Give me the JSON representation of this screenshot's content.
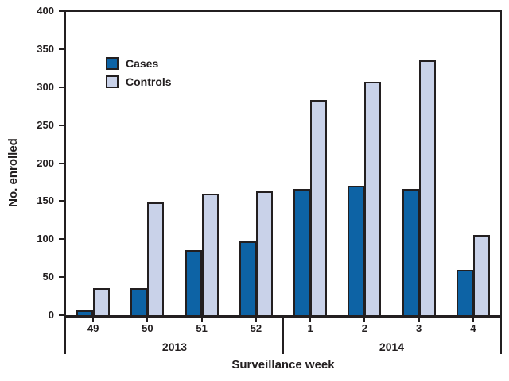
{
  "colors": {
    "cases": "#0d63a5",
    "controls": "#c9d2e9",
    "line": "#231f20",
    "background": "#ffffff"
  },
  "chart_data": {
    "type": "bar",
    "title": "",
    "xlabel": "Surveillance week",
    "ylabel": "No. enrolled",
    "categories": [
      "49",
      "50",
      "51",
      "52",
      "1",
      "2",
      "3",
      "4"
    ],
    "year_groups": [
      {
        "label": "2013",
        "weeks": [
          "49",
          "50",
          "51",
          "52"
        ]
      },
      {
        "label": "2014",
        "weeks": [
          "1",
          "2",
          "3",
          "4"
        ]
      }
    ],
    "series": [
      {
        "name": "Cases",
        "color": "#0d63a5",
        "values": [
          6,
          35,
          86,
          97,
          166,
          170,
          166,
          60
        ]
      },
      {
        "name": "Controls",
        "color": "#c9d2e9",
        "values": [
          35,
          148,
          160,
          163,
          283,
          307,
          335,
          105
        ]
      }
    ],
    "ylim": [
      0,
      400
    ],
    "yticks": [
      0,
      50,
      100,
      150,
      200,
      250,
      300,
      350,
      400
    ],
    "grid": false,
    "legend_position": "upper-left-inside"
  }
}
